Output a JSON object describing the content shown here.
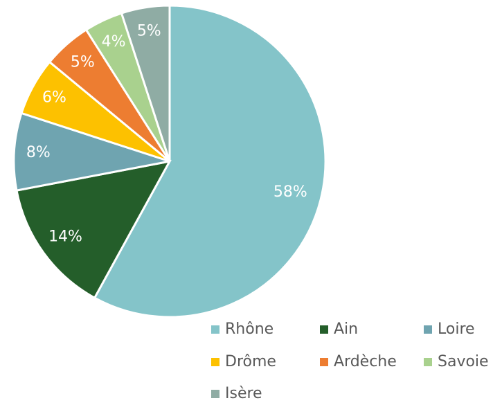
{
  "chart_data": {
    "type": "pie",
    "categories": [
      "Rhône",
      "Ain",
      "Loire",
      "Drôme",
      "Ardèche",
      "Savoie",
      "Isère"
    ],
    "values": [
      58,
      14,
      8,
      6,
      5,
      4,
      5
    ],
    "value_labels": [
      "58%",
      "14%",
      "8%",
      "6%",
      "5%",
      "4%",
      "5%"
    ],
    "colors": [
      "#84c4c9",
      "#245e2a",
      "#6fa4b0",
      "#fdc100",
      "#ed7d31",
      "#a9d18e",
      "#8faca4"
    ],
    "legend": "bottom-right"
  }
}
